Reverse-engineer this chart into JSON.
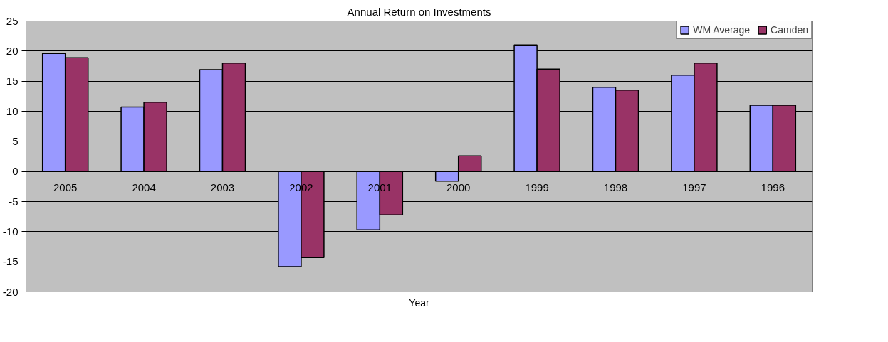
{
  "chart_data": {
    "type": "bar",
    "title": "Annual Return on Investments",
    "xlabel": "Year",
    "categories": [
      "2005",
      "2004",
      "2003",
      "2002",
      "2001",
      "2000",
      "1999",
      "1998",
      "1997",
      "1996"
    ],
    "series": [
      {
        "name": "WM Average",
        "color": "#9999ff",
        "values": [
          19.6,
          10.7,
          16.9,
          -15.8,
          -9.7,
          -1.6,
          21,
          14,
          16,
          11
        ]
      },
      {
        "name": "Camden",
        "color": "#993366",
        "values": [
          18.9,
          11.5,
          18.0,
          -14.3,
          -7.2,
          2.6,
          17,
          13.5,
          18,
          11
        ]
      }
    ],
    "ylim": [
      -20,
      25
    ],
    "yticks": [
      -20,
      -15,
      -10,
      -5,
      0,
      5,
      10,
      15,
      20,
      25
    ],
    "grid": "y",
    "legend": "top right"
  }
}
